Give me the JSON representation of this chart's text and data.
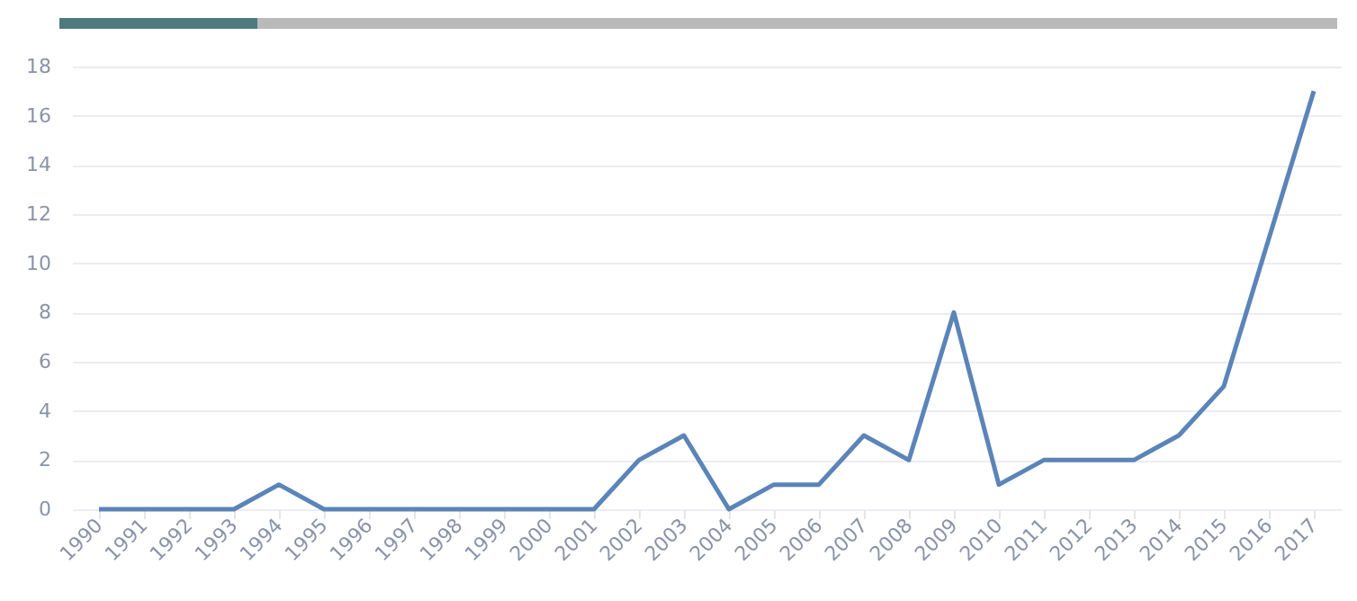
{
  "chart_data": {
    "type": "line",
    "categories": [
      "1990",
      "1991",
      "1992",
      "1993",
      "1994",
      "1995",
      "1996",
      "1997",
      "1998",
      "1999",
      "2000",
      "2001",
      "2002",
      "2003",
      "2004",
      "2005",
      "2006",
      "2007",
      "2008",
      "2009",
      "2010",
      "2011",
      "2012",
      "2013",
      "2014",
      "2015",
      "2016",
      "2017"
    ],
    "series": [
      {
        "color": "#5b84b8",
        "values": [
          0,
          0,
          0,
          0,
          1,
          0,
          0,
          0,
          0,
          0,
          0,
          0,
          2,
          3,
          0,
          1,
          1,
          3,
          2,
          8,
          1,
          2,
          2,
          2,
          3,
          5,
          11,
          17
        ]
      }
    ],
    "ylim": [
      0,
      18
    ],
    "yticks": [
      0,
      2,
      4,
      6,
      8,
      10,
      12,
      14,
      16,
      18
    ],
    "grid": "y",
    "marker": "none",
    "line_style": "solid"
  }
}
